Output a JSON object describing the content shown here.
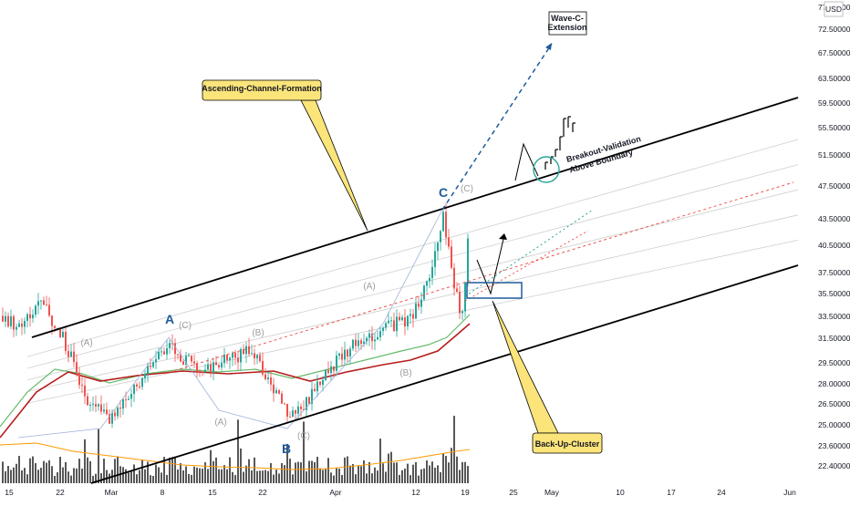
{
  "currency": "USD",
  "chart_data": {
    "type": "candlestick",
    "x_ticks": [
      "15",
      "22",
      "Mar",
      "8",
      "15",
      "22",
      "Apr",
      "12",
      "19",
      "25",
      "May",
      "10",
      "17",
      "24",
      "Jun"
    ],
    "y_ticks": [
      "77.50000",
      "72.50000",
      "67.50000",
      "63.50000",
      "59.50000",
      "55.50000",
      "51.50000",
      "47.50000",
      "43.50000",
      "40.50000",
      "37.50000",
      "35.50000",
      "33.50000",
      "31.50000",
      "29.50000",
      "28.00000",
      "26.50000",
      "25.00000",
      "23.60000",
      "22.40000"
    ],
    "y_scale": "log",
    "colors": {
      "up": "#26a69a",
      "down": "#ef5350",
      "channel": "#000000",
      "ma_fast": "#66bb6a",
      "ma_slow": "#b71c1c",
      "projection": "#1e5b9c",
      "callout": "#fbe47a"
    },
    "annotations": {
      "channel_label": "Ascending-Channel-Formation",
      "extension_label": [
        "Wave-C-",
        "Extension"
      ],
      "breakout_label": [
        "Breakout-Validation",
        "Above Boundary"
      ],
      "backup_label": "Back-Up-Cluster"
    },
    "wave_labels": {
      "major": [
        "A",
        "B",
        "C"
      ],
      "minor": [
        "(A)",
        "(C)",
        "(A)",
        "(B)",
        "(C)",
        "(A)",
        "(B)",
        "(C)",
        "(C)"
      ]
    }
  }
}
